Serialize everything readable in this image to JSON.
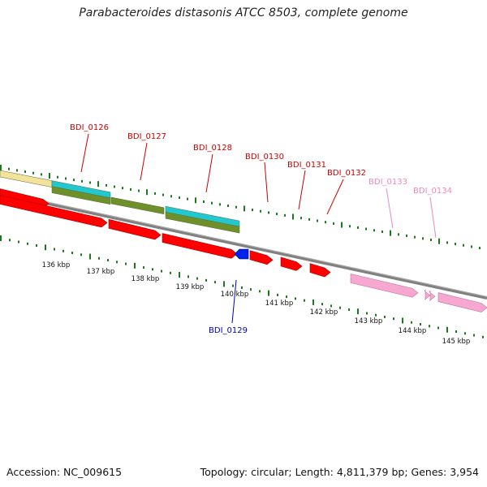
{
  "title": "Parabacteroides distasonis ATCC 8503, complete genome",
  "footer": {
    "accession": "Accession: NC_009615",
    "summary": "Topology: circular; Length: 4,811,379 bp; Genes: 3,954"
  },
  "scale_labels": [
    "136 kbp",
    "137 kbp",
    "138 kbp",
    "139 kbp",
    "140 kbp",
    "141 kbp",
    "142 kbp",
    "143 kbp",
    "144 kbp",
    "145 kbp"
  ],
  "genes": [
    {
      "name": "BDI_0126",
      "color": "#cc0000"
    },
    {
      "name": "BDI_0127",
      "color": "#cc0000"
    },
    {
      "name": "BDI_0128",
      "color": "#cc0000"
    },
    {
      "name": "BDI_0129",
      "color": "#0000bb"
    },
    {
      "name": "BDI_0130",
      "color": "#cc0000"
    },
    {
      "name": "BDI_0131",
      "color": "#cc0000"
    },
    {
      "name": "BDI_0132",
      "color": "#cc0000"
    },
    {
      "name": "BDI_0133",
      "color": "#ee88bb"
    },
    {
      "name": "BDI_0134",
      "color": "#ee88bb"
    }
  ],
  "colors": {
    "cds_red": "#ff0000",
    "cds_pink": "#f7a8d0",
    "cds_blue": "#0022ee",
    "feature_yellow": "#f2e29a",
    "feature_cyan": "#22c8d0",
    "feature_olive": "#6f8f2a",
    "tick_green": "#1a7a1a",
    "backbone": "#808080"
  }
}
